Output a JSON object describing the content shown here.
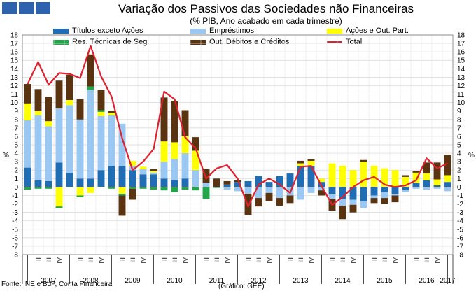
{
  "header": {
    "title": "Variação dos Passivos das Sociedades não Financeiras",
    "subtitle": "(% PIB, Ano acabado em cada trimestre)"
  },
  "footer": {
    "source": "Fonte: INE e BdP, Conta Financeira",
    "credit": "(Gráfico: GEE)"
  },
  "chart_data": {
    "type": "bar",
    "stacked": true,
    "ylabel": "%",
    "ylim": [
      -8,
      18
    ],
    "yticks": [
      -8,
      -7,
      -6,
      -5,
      -4,
      -3,
      -2,
      -1,
      0,
      1,
      2,
      3,
      4,
      5,
      6,
      7,
      8,
      9,
      10,
      11,
      12,
      13,
      14,
      15,
      16,
      17,
      18
    ],
    "quarter_labels": [
      "II",
      "III",
      "IV"
    ],
    "years": [
      "2007",
      "2008",
      "2009",
      "2010",
      "2011",
      "2012",
      "2013",
      "2014",
      "2015",
      "2016",
      "2017"
    ],
    "categories": [
      "2007Q1",
      "2007Q2",
      "2007Q3",
      "2007Q4",
      "2008Q1",
      "2008Q2",
      "2008Q3",
      "2008Q4",
      "2009Q1",
      "2009Q2",
      "2009Q3",
      "2009Q4",
      "2010Q1",
      "2010Q2",
      "2010Q3",
      "2010Q4",
      "2011Q1",
      "2011Q2",
      "2011Q3",
      "2011Q4",
      "2012Q1",
      "2012Q2",
      "2012Q3",
      "2012Q4",
      "2013Q1",
      "2013Q2",
      "2013Q3",
      "2013Q4",
      "2014Q1",
      "2014Q2",
      "2014Q3",
      "2014Q4",
      "2015Q1",
      "2015Q2",
      "2015Q3",
      "2015Q4",
      "2016Q1",
      "2016Q2",
      "2016Q3",
      "2016Q4",
      "2017Q1"
    ],
    "series": [
      {
        "name": "Títulos exceto Ações",
        "color": "#1f6db5",
        "values": [
          2.3,
          0.8,
          0.7,
          2.9,
          1.7,
          1.0,
          1.0,
          2.0,
          2.5,
          2.5,
          2.0,
          1.5,
          1.5,
          1.0,
          0.8,
          1.0,
          0,
          0,
          0,
          0.3,
          0.6,
          0.7,
          1.3,
          0.6,
          1.3,
          1.6,
          2.5,
          2.5,
          0.6,
          -0.8,
          -1.4,
          -1.5,
          -1.7,
          -1.0,
          -0.6,
          -0.8,
          -0.3,
          0.5,
          0.8,
          0.2,
          0.6
        ]
      },
      {
        "name": "Empréstimos",
        "color": "#9ac8f2",
        "values": [
          5.6,
          7.7,
          6.5,
          6.4,
          8.0,
          7.0,
          10.5,
          6.4,
          6.0,
          5.0,
          0.5,
          0.6,
          0.2,
          2.0,
          2.5,
          3.0,
          2.0,
          0.5,
          0,
          -0.3,
          -0.5,
          -0.8,
          -1.3,
          -0.7,
          -1.3,
          -1.0,
          -1.5,
          -0.7,
          -0.4,
          -0.6,
          -0.8,
          -0.6,
          -0.8,
          -0.3,
          -0.7,
          -0.2,
          -0.3,
          -0.2,
          -0.3,
          -0.2,
          -0.5
        ]
      },
      {
        "name": "Ações e Out. Part.",
        "color": "#ffff00",
        "values": [
          2.0,
          0.5,
          0.6,
          -2.3,
          0.6,
          -1.0,
          -0.7,
          0.5,
          0.3,
          -0.8,
          0.6,
          0.3,
          0.2,
          2.4,
          2.0,
          2.0,
          2.3,
          0,
          0,
          0,
          0,
          0,
          0,
          0,
          0,
          0,
          0.3,
          0.6,
          0.4,
          2.8,
          2.5,
          2.0,
          3.0,
          2.5,
          2.2,
          2.0,
          1.2,
          1.2,
          0.8,
          0.7,
          0.8
        ]
      },
      {
        "name": "Res. Técnicas de Seg.",
        "color": "#21a64a",
        "values": [
          -0.3,
          -0.2,
          -0.2,
          -0.2,
          0,
          -0.2,
          0.4,
          0.2,
          -0.2,
          -0.2,
          -0.2,
          -0.2,
          -0.3,
          -0.4,
          -0.6,
          -0.3,
          -0.4,
          -1.4,
          -0.1,
          0,
          0,
          0,
          0,
          0,
          0,
          0,
          0,
          0,
          0,
          0,
          0,
          0,
          0,
          0,
          0,
          0,
          0,
          0,
          0,
          0,
          0
        ]
      },
      {
        "name": "Out. Débitos e Créditos",
        "color": "#5a3410",
        "values": [
          2.3,
          2.6,
          2.9,
          3.3,
          3.0,
          2.4,
          3.8,
          2.4,
          0.2,
          -2.4,
          -1.3,
          0,
          0.2,
          5.2,
          4.9,
          3.1,
          1.6,
          1.6,
          1.0,
          0.4,
          0.2,
          -2.5,
          -1.0,
          -1.0,
          -0.9,
          -0.9,
          0.3,
          0.2,
          -0.6,
          -1.4,
          -1.6,
          -0.9,
          0.2,
          -0.6,
          -0.7,
          -0.8,
          0.2,
          0.2,
          1.3,
          2.0,
          2.4
        ]
      }
    ],
    "total": {
      "name": "Total",
      "color": "#e0202c",
      "values": [
        12.2,
        14.8,
        12.1,
        13.5,
        13.4,
        12.9,
        16.7,
        13.1,
        10.7,
        5.8,
        2.0,
        3.0,
        4.5,
        11.3,
        10.4,
        5.9,
        4.6,
        1.0,
        2.2,
        2.6,
        1.0,
        -2.3,
        0.3,
        1.0,
        0.3,
        -0.7,
        2.4,
        2.5,
        0.1,
        -2.1,
        -1.2,
        0,
        0.8,
        1.2,
        0.3,
        0,
        0.2,
        0.8,
        3.4,
        2.2,
        2.8
      ]
    }
  }
}
